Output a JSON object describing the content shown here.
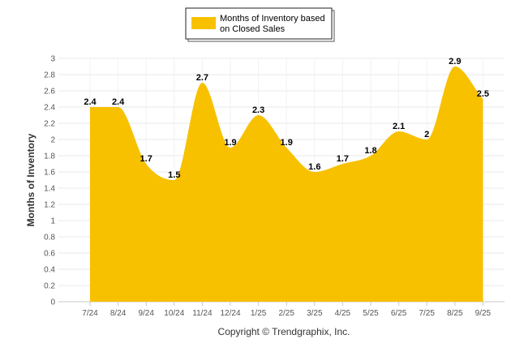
{
  "chart_data": {
    "type": "area",
    "title": "",
    "legend": {
      "label_line1": "Months of Inventory based",
      "label_line2": "on Closed Sales",
      "placement": "top-center",
      "color": "#F7C100"
    },
    "ylabel": "Months of Inventory",
    "xlabel": "",
    "ylim": [
      0,
      3
    ],
    "yticks": [
      "0",
      "0.2",
      "0.4",
      "0.6",
      "0.8",
      "1",
      "1.2",
      "1.4",
      "1.6",
      "1.8",
      "2",
      "2.2",
      "2.4",
      "2.6",
      "2.8",
      "3"
    ],
    "categories": [
      "7/24",
      "8/24",
      "9/24",
      "10/24",
      "11/24",
      "12/24",
      "1/25",
      "2/25",
      "3/25",
      "4/25",
      "5/25",
      "6/25",
      "7/25",
      "8/25",
      "9/25"
    ],
    "values": [
      2.4,
      2.4,
      1.7,
      1.5,
      2.7,
      1.9,
      2.3,
      1.9,
      1.6,
      1.7,
      1.8,
      2.1,
      2,
      2.9,
      2.5
    ],
    "data_labels": [
      "2.4",
      "2.4",
      "1.7",
      "1.5",
      "2.7",
      "1.9",
      "2.3",
      "1.9",
      "1.6",
      "1.7",
      "1.8",
      "2.1",
      "2",
      "2.9",
      "2.5"
    ],
    "series_color": "#F7C100",
    "grid_color": "#E8E8E8",
    "grid": true
  },
  "footer": {
    "copyright": "Copyright © Trendgraphix, Inc."
  }
}
